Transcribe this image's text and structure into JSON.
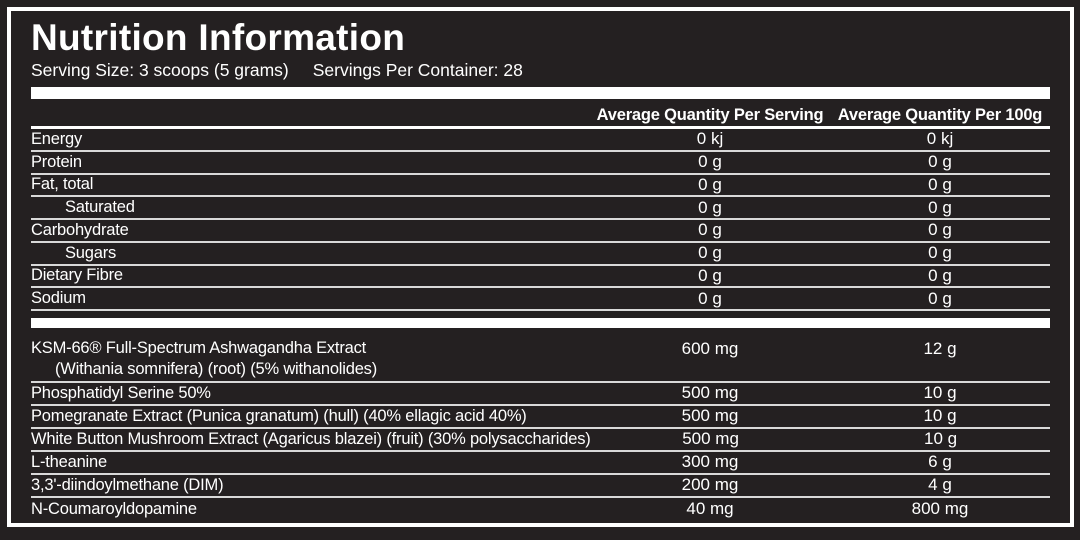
{
  "label": {
    "title": "Nutrition Information",
    "serving_size": "Serving Size: 3 scoops (5 grams)",
    "servings_per_container": "Servings Per Container: 28",
    "col_headers": [
      "Average Quantity Per Serving",
      "Average Quantity Per 100g"
    ],
    "macro_rows": [
      {
        "name": "Energy",
        "indent": false,
        "per_serving": "0 kj",
        "per_100g": "0 kj"
      },
      {
        "name": "Protein",
        "indent": false,
        "per_serving": "0 g",
        "per_100g": "0 g"
      },
      {
        "name": "Fat, total",
        "indent": false,
        "per_serving": "0 g",
        "per_100g": "0 g"
      },
      {
        "name": "Saturated",
        "indent": true,
        "per_serving": "0 g",
        "per_100g": "0 g"
      },
      {
        "name": "Carbohydrate",
        "indent": false,
        "per_serving": "0 g",
        "per_100g": "0 g"
      },
      {
        "name": "Sugars",
        "indent": true,
        "per_serving": "0 g",
        "per_100g": "0 g"
      },
      {
        "name": "Dietary Fibre",
        "indent": false,
        "per_serving": "0 g",
        "per_100g": "0 g"
      },
      {
        "name": "Sodium",
        "indent": false,
        "per_serving": "0 g",
        "per_100g": "0 g"
      }
    ],
    "ingredient_rows": [
      {
        "name": "KSM-66® Full-Spectrum Ashwagandha Extract",
        "subname": "(Withania somnifera) (root) (5% withanolides)",
        "per_serving": "600 mg",
        "per_100g": "12 g"
      },
      {
        "name": "Phosphatidyl Serine 50%",
        "per_serving": "500 mg",
        "per_100g": "10 g"
      },
      {
        "name": "Pomegranate Extract (Punica granatum) (hull) (40% ellagic acid 40%)",
        "per_serving": "500 mg",
        "per_100g": "10 g"
      },
      {
        "name": "White Button Mushroom Extract (Agaricus blazei) (fruit) (30% polysaccharides)",
        "per_serving": "500 mg",
        "per_100g": "10 g"
      },
      {
        "name": "L-theanine",
        "per_serving": "300 mg",
        "per_100g": "6 g"
      },
      {
        "name": "3,3'-diindoylmethane (DIM)",
        "per_serving": "200 mg",
        "per_100g": "4 g"
      },
      {
        "name": "N-Coumaroyldopamine",
        "per_serving": "40 mg",
        "per_100g": "800 mg"
      }
    ],
    "colors": {
      "background": "#242021",
      "text": "#ffffff",
      "rule": "#d9d9d9",
      "divider": "#ffffff"
    }
  }
}
